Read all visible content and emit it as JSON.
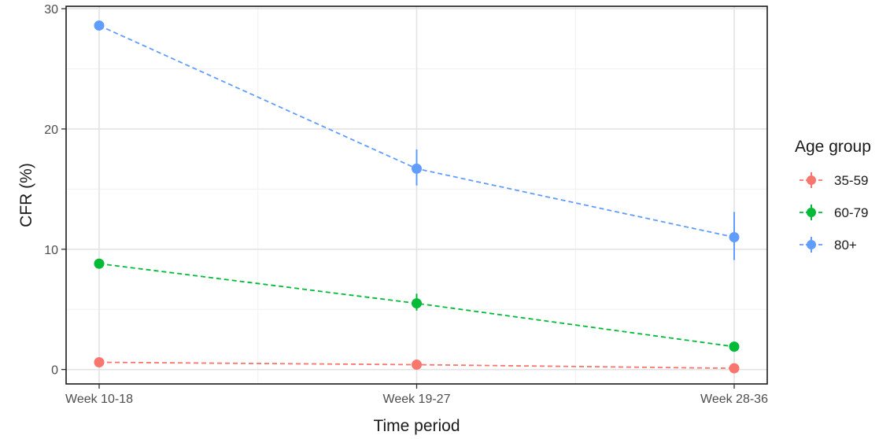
{
  "chart_data": {
    "type": "line",
    "xlabel": "Time period",
    "ylabel": "CFR (%)",
    "categories": [
      "Week 10-18",
      "Week 19-27",
      "Week 28-36"
    ],
    "ylim": [
      -1.2,
      30.2
    ],
    "yticks": [
      0,
      10,
      20,
      30
    ],
    "grid": true,
    "legend": {
      "title": "Age group",
      "position": "right"
    },
    "series": [
      {
        "name": "35-59",
        "color": "#F8766D",
        "values": [
          0.6,
          0.4,
          0.1
        ],
        "lower": [
          0.5,
          0.3,
          0.05
        ],
        "upper": [
          0.7,
          0.5,
          0.2
        ]
      },
      {
        "name": "60-79",
        "color": "#00BA38",
        "values": [
          8.8,
          5.5,
          1.9
        ],
        "lower": [
          8.5,
          4.9,
          1.7
        ],
        "upper": [
          9.1,
          6.3,
          2.2
        ]
      },
      {
        "name": "80+",
        "color": "#619CFF",
        "values": [
          28.6,
          16.7,
          11.0
        ],
        "lower": [
          28.2,
          15.3,
          9.1
        ],
        "upper": [
          29.0,
          18.3,
          13.1
        ]
      }
    ]
  }
}
